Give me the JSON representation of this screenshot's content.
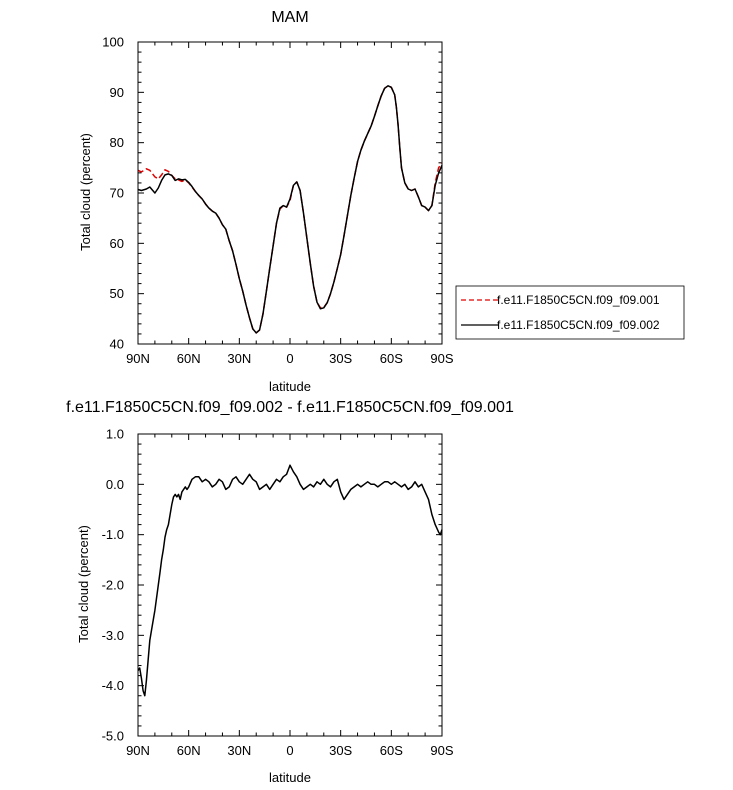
{
  "colors": {
    "series1": "#e00000",
    "series2": "#000000",
    "axis": "#000000"
  },
  "chart_data": [
    {
      "type": "line",
      "title": "MAM",
      "xlabel": "latitude",
      "ylabel": "Total cloud (percent)",
      "xlim": [
        90,
        -90
      ],
      "ylim": [
        40,
        100
      ],
      "x_ticks": [
        90,
        60,
        30,
        0,
        -30,
        -60,
        -90
      ],
      "x_tick_labels": [
        "90N",
        "60N",
        "30N",
        "0",
        "30S",
        "60S",
        "90S"
      ],
      "y_ticks": [
        40,
        50,
        60,
        70,
        80,
        90,
        100
      ],
      "y_tick_labels": [
        "40",
        "50",
        "60",
        "70",
        "80",
        "90",
        "100"
      ],
      "legend": "right",
      "series": [
        {
          "name": "f.e11.F1850C5CN.f09_f09.001",
          "style": "dashed",
          "x": [
            90,
            88,
            85,
            83,
            80,
            78,
            76,
            74,
            72,
            70,
            68,
            66,
            64,
            62,
            60,
            58,
            56,
            54,
            52,
            50,
            48,
            46,
            44,
            42,
            40,
            38,
            36,
            34,
            32,
            30,
            28,
            26,
            24,
            22,
            20,
            18,
            16,
            14,
            12,
            10,
            8,
            6,
            4,
            2,
            0,
            -2,
            -4,
            -6,
            -8,
            -10,
            -12,
            -14,
            -16,
            -18,
            -20,
            -22,
            -24,
            -26,
            -28,
            -30,
            -32,
            -34,
            -36,
            -38,
            -40,
            -42,
            -44,
            -46,
            -48,
            -50,
            -52,
            -54,
            -56,
            -58,
            -60,
            -62,
            -63,
            -64,
            -65,
            -66,
            -68,
            -70,
            -72,
            -74,
            -76,
            -78,
            -80,
            -82,
            -84,
            -86,
            -88,
            -90
          ],
          "values": [
            74.5,
            74.2,
            74.8,
            74.5,
            73.2,
            72.8,
            73.6,
            74.6,
            74.3,
            73.5,
            72.8,
            72.6,
            72.3,
            72.6,
            72.0,
            71.2,
            70.3,
            69.5,
            68.8,
            67.8,
            67.0,
            66.4,
            66.0,
            65.0,
            63.7,
            62.8,
            60.5,
            58.5,
            55.8,
            53.0,
            50.5,
            47.7,
            45.2,
            43.0,
            42.2,
            42.8,
            46.0,
            50.5,
            55.0,
            59.5,
            64.0,
            66.8,
            67.5,
            67.2,
            68.5,
            71.5,
            72.2,
            70.5,
            66.0,
            61.0,
            56.0,
            51.5,
            48.3,
            47.2,
            47.3,
            48.2,
            50.0,
            52.3,
            55.0,
            57.8,
            61.5,
            65.5,
            69.5,
            73.0,
            76.3,
            78.5,
            80.3,
            81.8,
            83.3,
            85.2,
            87.3,
            89.3,
            90.8,
            91.3,
            91.0,
            89.5,
            87.0,
            83.5,
            79.0,
            75.0,
            72.0,
            70.8,
            70.5,
            70.8,
            69.2,
            67.5,
            67.2,
            66.5,
            67.5,
            72.0,
            75.0,
            76.0
          ]
        },
        {
          "name": "f.e11.F1850C5CN.f09_f09.002",
          "style": "solid",
          "x": [
            90,
            88,
            85,
            83,
            80,
            78,
            76,
            74,
            72,
            70,
            68,
            66,
            64,
            62,
            60,
            58,
            56,
            54,
            52,
            50,
            48,
            46,
            44,
            42,
            40,
            38,
            36,
            34,
            32,
            30,
            28,
            26,
            24,
            22,
            20,
            18,
            16,
            14,
            12,
            10,
            8,
            6,
            4,
            2,
            0,
            -2,
            -4,
            -6,
            -8,
            -10,
            -12,
            -14,
            -16,
            -18,
            -20,
            -22,
            -24,
            -26,
            -28,
            -30,
            -32,
            -34,
            -36,
            -38,
            -40,
            -42,
            -44,
            -46,
            -48,
            -50,
            -52,
            -54,
            -56,
            -58,
            -60,
            -62,
            -63,
            -64,
            -65,
            -66,
            -68,
            -70,
            -72,
            -74,
            -76,
            -78,
            -80,
            -82,
            -84,
            -86,
            -88,
            -90
          ],
          "values": [
            70.7,
            70.5,
            70.8,
            71.2,
            70.0,
            71.0,
            72.5,
            73.6,
            73.8,
            73.5,
            72.5,
            72.8,
            72.6,
            72.7,
            72.1,
            71.3,
            70.3,
            69.5,
            68.8,
            67.8,
            67.0,
            66.4,
            66.0,
            65.0,
            63.7,
            62.8,
            60.5,
            58.5,
            55.8,
            53.0,
            50.5,
            47.7,
            45.2,
            43.0,
            42.2,
            42.8,
            46.0,
            50.5,
            55.0,
            59.5,
            64.0,
            67.0,
            67.5,
            67.2,
            68.8,
            71.5,
            72.2,
            70.5,
            66.0,
            61.0,
            56.0,
            51.5,
            48.3,
            47.0,
            47.2,
            48.2,
            50.0,
            52.3,
            55.0,
            57.8,
            61.5,
            65.5,
            69.5,
            73.0,
            76.3,
            78.5,
            80.3,
            81.8,
            83.3,
            85.2,
            87.3,
            89.3,
            90.8,
            91.3,
            91.0,
            89.5,
            87.0,
            83.5,
            79.0,
            75.0,
            72.0,
            70.8,
            70.5,
            70.8,
            69.2,
            67.5,
            67.2,
            66.5,
            67.5,
            71.5,
            74.0,
            75.5
          ]
        }
      ]
    },
    {
      "type": "line",
      "title": "f.e11.F1850C5CN.f09_f09.002 - f.e11.F1850C5CN.f09_f09.001",
      "xlabel": "latitude",
      "ylabel": "Total cloud (percent)",
      "xlim": [
        90,
        -90
      ],
      "ylim": [
        -5,
        1
      ],
      "x_ticks": [
        90,
        60,
        30,
        0,
        -30,
        -60,
        -90
      ],
      "x_tick_labels": [
        "90N",
        "60N",
        "30N",
        "0",
        "30S",
        "60S",
        "90S"
      ],
      "y_ticks": [
        1,
        0,
        -1,
        -2,
        -3,
        -4,
        -5
      ],
      "y_tick_labels": [
        "1.0",
        "0.0",
        "-1.0",
        "-2.0",
        "-3.0",
        "-4.0",
        "-5.0"
      ],
      "series": [
        {
          "style": "solid",
          "x": [
            90,
            89,
            88,
            87,
            86,
            85,
            84,
            83,
            82,
            81,
            80,
            79,
            78,
            77,
            76,
            75,
            74,
            73,
            72,
            71,
            70,
            69,
            68,
            67,
            66,
            65,
            64,
            63,
            62,
            61,
            60,
            58,
            56,
            54,
            52,
            50,
            48,
            46,
            44,
            42,
            40,
            38,
            36,
            34,
            32,
            30,
            28,
            26,
            24,
            22,
            20,
            18,
            16,
            14,
            12,
            10,
            8,
            6,
            4,
            2,
            0,
            -2,
            -4,
            -6,
            -8,
            -10,
            -12,
            -14,
            -16,
            -18,
            -20,
            -22,
            -24,
            -26,
            -28,
            -30,
            -32,
            -34,
            -36,
            -38,
            -40,
            -42,
            -44,
            -46,
            -48,
            -50,
            -52,
            -54,
            -56,
            -58,
            -60,
            -62,
            -64,
            -66,
            -68,
            -70,
            -72,
            -74,
            -76,
            -78,
            -80,
            -82,
            -84,
            -86,
            -88,
            -89,
            -90
          ],
          "values": [
            -3.7,
            -3.65,
            -3.85,
            -4.1,
            -4.2,
            -3.9,
            -3.5,
            -3.1,
            -2.9,
            -2.7,
            -2.5,
            -2.25,
            -2.0,
            -1.75,
            -1.5,
            -1.3,
            -1.05,
            -0.9,
            -0.8,
            -0.6,
            -0.4,
            -0.25,
            -0.2,
            -0.25,
            -0.2,
            -0.3,
            -0.15,
            -0.1,
            -0.05,
            -0.1,
            -0.05,
            0.1,
            0.15,
            0.15,
            0.05,
            0.1,
            0.05,
            -0.05,
            0.0,
            0.1,
            0.05,
            -0.1,
            -0.05,
            0.1,
            0.15,
            0.05,
            0.0,
            0.1,
            0.2,
            0.1,
            0.05,
            -0.1,
            -0.05,
            0.0,
            -0.1,
            0.0,
            0.1,
            0.05,
            0.15,
            0.2,
            0.38,
            0.25,
            0.15,
            0.0,
            -0.1,
            -0.05,
            0.0,
            -0.05,
            0.05,
            0.0,
            0.1,
            0.0,
            -0.05,
            0.05,
            0.1,
            -0.15,
            -0.3,
            -0.2,
            -0.1,
            -0.05,
            0.0,
            -0.05,
            0.0,
            0.05,
            0.0,
            0.0,
            -0.05,
            0.0,
            0.05,
            0.05,
            0.0,
            0.05,
            0.0,
            -0.05,
            0.0,
            -0.1,
            -0.05,
            0.05,
            -0.05,
            0.0,
            -0.15,
            -0.3,
            -0.6,
            -0.8,
            -0.95,
            -1.0,
            -0.9
          ]
        }
      ]
    }
  ]
}
